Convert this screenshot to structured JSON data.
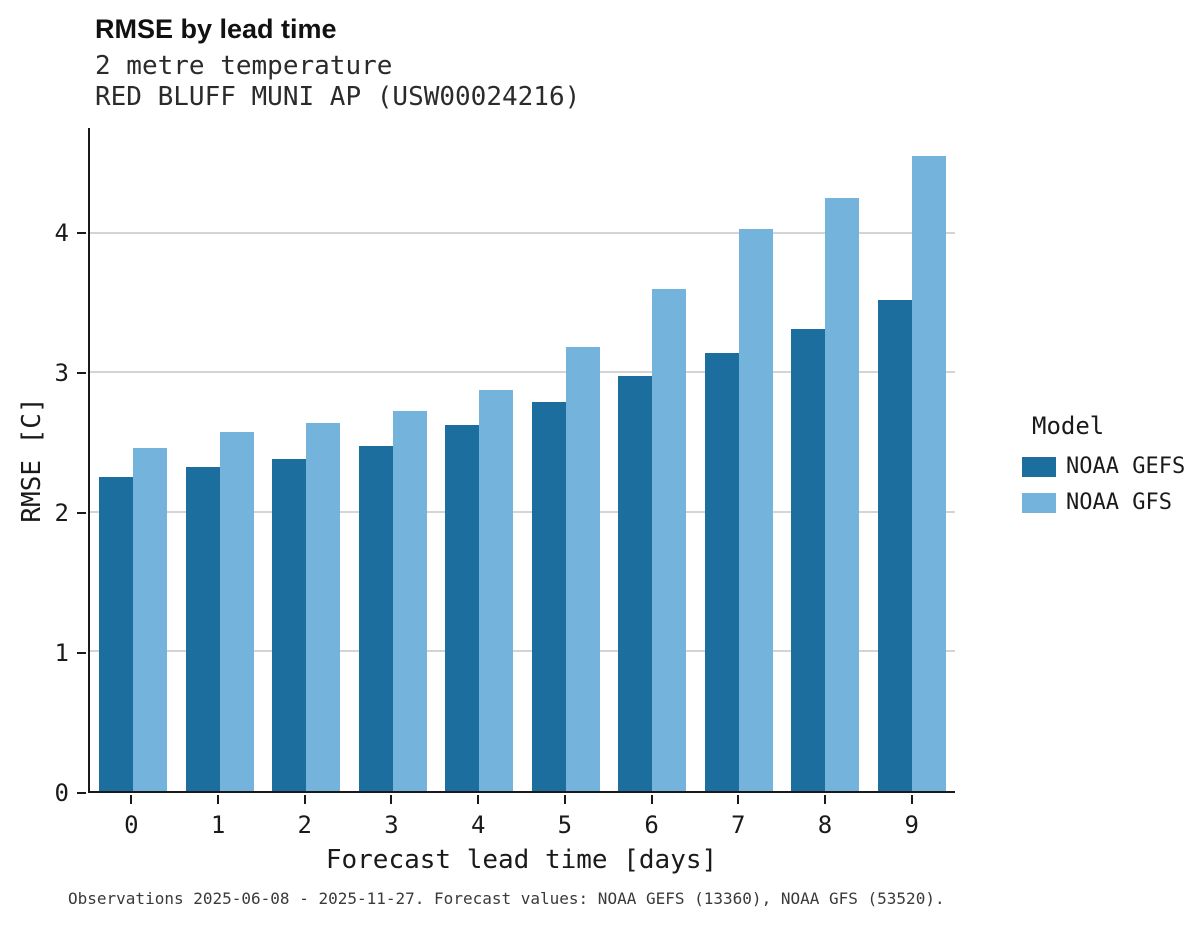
{
  "header": {
    "title": "RMSE by lead time",
    "subtitle1": "2 metre temperature",
    "subtitle2": "RED BLUFF MUNI AP (USW00024216)"
  },
  "chart_data": {
    "type": "bar",
    "title": "RMSE by lead time",
    "subtitle": "2 metre temperature — RED BLUFF MUNI AP (USW00024216)",
    "categories": [
      "0",
      "1",
      "2",
      "3",
      "4",
      "5",
      "6",
      "7",
      "8",
      "9"
    ],
    "series": [
      {
        "name": "NOAA GEFS",
        "color": "#1b6e9e",
        "values": [
          2.25,
          2.32,
          2.38,
          2.47,
          2.62,
          2.79,
          2.97,
          3.14,
          3.31,
          3.52
        ]
      },
      {
        "name": "NOAA GFS",
        "color": "#74b4dc",
        "values": [
          2.46,
          2.57,
          2.64,
          2.72,
          2.87,
          3.18,
          3.6,
          4.03,
          4.25,
          4.55
        ]
      }
    ],
    "xlabel": "Forecast lead time [days]",
    "ylabel": "RMSE [C]",
    "yticks": [
      0,
      1,
      2,
      3,
      4
    ],
    "ylim": [
      0,
      4.75
    ],
    "grid": "horizontal",
    "legend_title": "Model",
    "legend_position": "right"
  },
  "footer": {
    "caption": "Observations 2025-06-08 - 2025-11-27. Forecast values: NOAA GEFS (13360), NOAA GFS (53520)."
  }
}
